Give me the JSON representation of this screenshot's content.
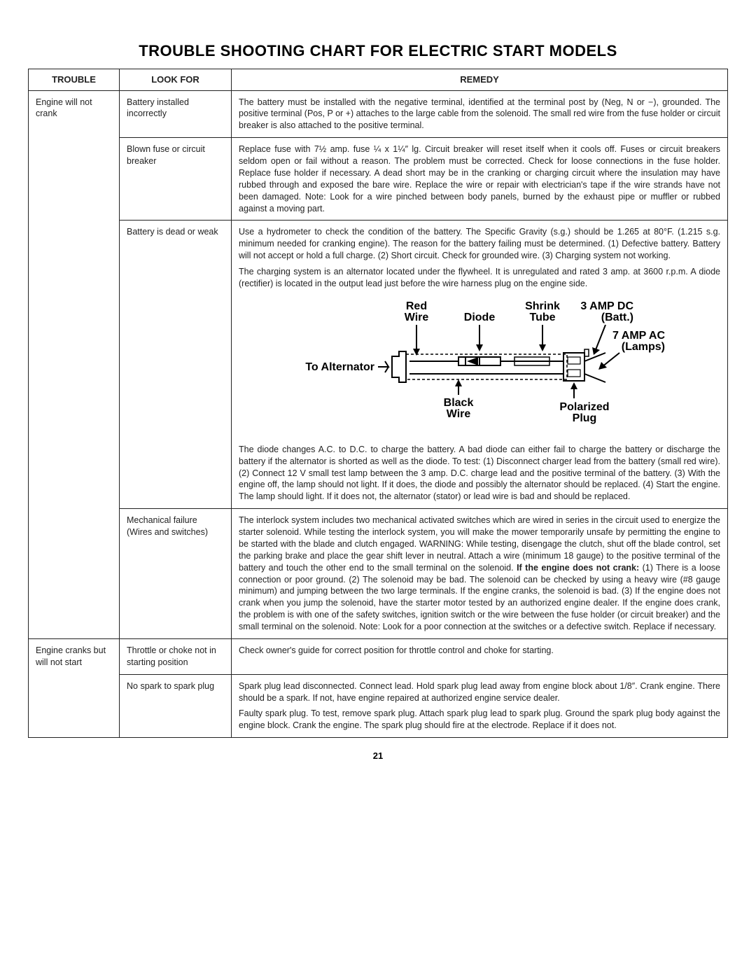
{
  "title": "TROUBLE SHOOTING CHART FOR ELECTRIC START MODELS",
  "page_number": "21",
  "columns": [
    "TROUBLE",
    "LOOK FOR",
    "REMEDY"
  ],
  "rows": [
    {
      "trouble": "Engine will not crank",
      "look": "Battery installed incorrectly",
      "remedy": [
        "The battery must be installed with the negative terminal, identified at the terminal post by (Neg, N or −), grounded. The positive terminal (Pos, P or +) attaches to the large cable from the solenoid. The small red wire from the fuse holder or circuit breaker is also attached to the positive terminal."
      ]
    },
    {
      "trouble": "",
      "look": "Blown fuse or circuit breaker",
      "remedy": [
        "Replace fuse with 7½ amp. fuse ¼ x 1¼″ lg. Circuit breaker will reset itself when it cools off. Fuses or circuit breakers seldom open or fail without a reason. The problem must be corrected. Check for loose connections in the fuse holder. Replace fuse holder if necessary. A dead short may be in the cranking or charging circuit where the insulation may have rubbed through and exposed the bare wire. Replace the wire or repair with electrician's tape if the wire strands have not been damaged. Note: Look for a wire pinched between body panels, burned by the exhaust pipe or muffler or rubbed against a moving part."
      ]
    },
    {
      "trouble": "",
      "look": "Battery is dead or weak",
      "remedy": [
        "Use a hydrometer to check the condition of the battery. The Specific Gravity (s.g.) should be 1.265 at 80°F. (1.215 s.g. minimum needed for cranking engine). The reason for the battery failing must be determined. (1) Defective battery. Battery will not accept or hold a full charge. (2) Short circuit. Check for grounded wire. (3) Charging system not working.",
        "The charging system is an alternator located under the flywheel. It is unregulated and rated 3 amp. at 3600 r.p.m. A diode (rectifier) is located in the output lead just before the wire harness plug on the engine side.",
        "__DIAGRAM__",
        "The diode changes A.C. to D.C. to charge the battery. A bad diode can either fail to charge the battery or discharge the battery if the alternator is shorted as well as the diode. To test: (1) Disconnect charger lead from the battery (small red wire). (2) Connect 12 V small test lamp between the 3 amp. D.C. charge lead and the positive terminal of the battery. (3) With the engine off, the lamp should not light. If it does, the diode and possibly the alternator should be replaced. (4) Start the engine. The lamp should light. If it does not, the alternator (stator) or lead wire is bad and should be replaced."
      ]
    },
    {
      "trouble": "",
      "look": "Mechanical failure (Wires and switches)",
      "remedy": [
        "The interlock system includes two mechanical activated switches which are wired in series in the circuit used to energize the starter solenoid. While testing the interlock system, you will make the mower temporarily unsafe by permitting the engine to be started with the blade and clutch engaged. WARNING: While testing, disengage the clutch, shut off the blade control, set the parking brake and place the gear shift lever in neutral. Attach a wire (minimum 18 gauge) to the positive terminal of the battery and touch the other end to the small terminal on the solenoid. If the engine does not crank: (1) There is a loose connection or poor ground. (2) The solenoid may be bad. The solenoid can be checked by using a heavy wire (#8 gauge minimum) and jumping between the two large terminals. If the engine cranks, the solenoid is bad. (3) If the engine does not crank when you jump the solenoid, have the starter motor tested by an authorized engine dealer. If the engine does crank, the problem is with one of the safety switches, ignition switch or the wire between the fuse holder (or circuit breaker) and the small terminal on the solenoid. Note: Look for a poor connection at the switches or a defective switch. Replace if necessary."
      ]
    },
    {
      "trouble": "Engine cranks but will not start",
      "look": "Throttle or choke not in starting position",
      "remedy": [
        "Check owner's guide for correct position for throttle control and choke for starting."
      ]
    },
    {
      "trouble": "",
      "look": "No spark to spark plug",
      "remedy": [
        "Spark plug lead disconnected. Connect lead. Hold spark plug lead away from engine block about 1/8″. Crank engine. There should be a spark. If not, have engine repaired at authorized engine service dealer.",
        "Faulty spark plug. To test, remove spark plug. Attach spark plug lead to spark plug. Ground the spark plug body against the engine block. Crank the engine. The spark plug should fire at the electrode. Replace if it does not."
      ]
    }
  ],
  "diagram": {
    "labels": {
      "red_wire": "Red\nWire",
      "diode": "Diode",
      "shrink_tube": "Shrink\nTube",
      "amp_dc": "3 AMP DC\n(Batt.)",
      "amp_ac": "7 AMP AC\n(Lamps)",
      "to_alt": "To Alternator",
      "black_wire": "Black\nWire",
      "polarized_plug": "Polarized\nPlug"
    },
    "colors": {
      "stroke": "#000000",
      "fill": "#000000"
    }
  }
}
